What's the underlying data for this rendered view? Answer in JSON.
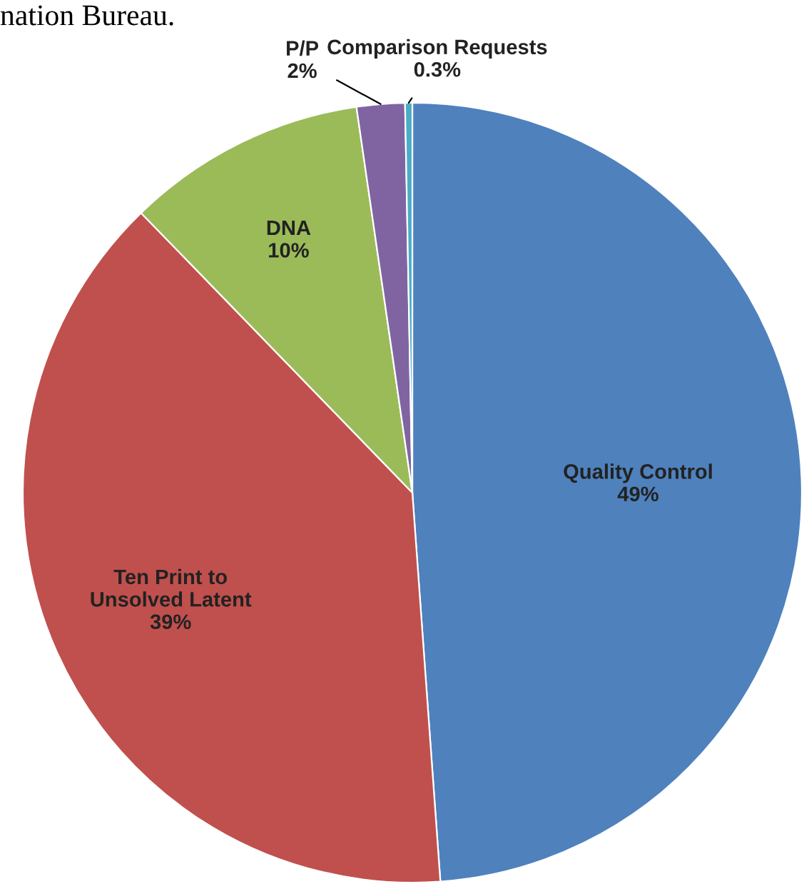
{
  "chart_data": {
    "type": "pie",
    "categories": [
      "Quality Control",
      "Ten Print to\nUnsolved Latent",
      "DNA",
      "P/P",
      "Comparison Requests"
    ],
    "values": [
      49,
      39,
      10,
      2,
      0.3
    ],
    "value_labels": [
      "49%",
      "39%",
      "10%",
      "2%",
      "0.3%"
    ],
    "colors": [
      "#4f81bd",
      "#c0504d",
      "#9bbb59",
      "#8064a2",
      "#4bacc6"
    ],
    "annotations": [
      "nation Bureau."
    ]
  }
}
